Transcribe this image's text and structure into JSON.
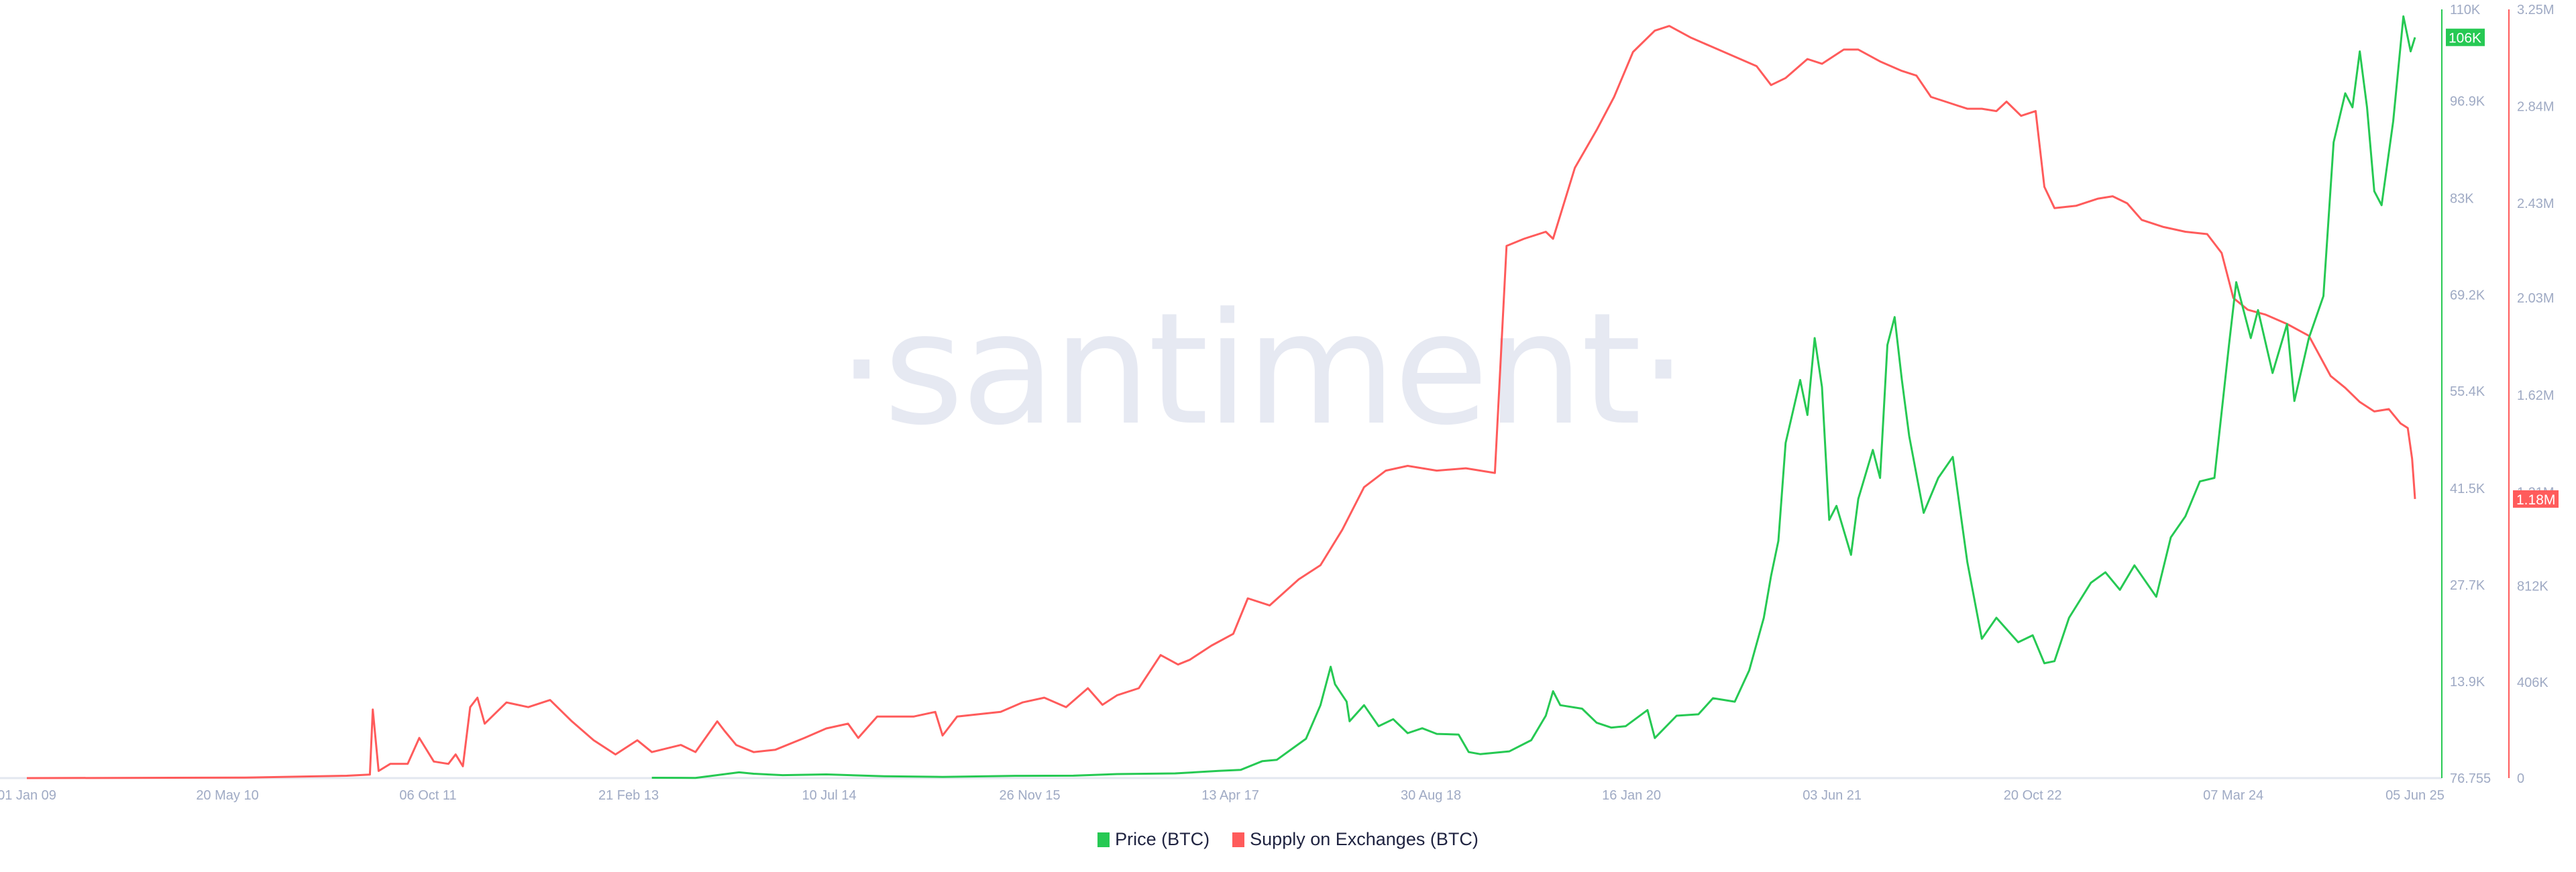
{
  "chart_data": {
    "type": "line",
    "title": "",
    "watermark": "·santiment·",
    "x_tick_labels": [
      "01 Jan 09",
      "20 May 10",
      "06 Oct 11",
      "21 Feb 13",
      "10 Jul 14",
      "26 Nov 15",
      "13 Apr 17",
      "30 Aug 18",
      "16 Jan 20",
      "03 Jun 21",
      "20 Oct 22",
      "07 Mar 24",
      "05 Jun 25"
    ],
    "x_tick_years": [
      2009.0,
      2010.38,
      2011.76,
      2013.14,
      2014.52,
      2015.9,
      2017.28,
      2018.66,
      2020.04,
      2021.42,
      2022.8,
      2024.18,
      2025.43
    ],
    "xlim": [
      2008.98,
      2025.5
    ],
    "legend_position": "bottom-center",
    "grid": false,
    "axes": {
      "left": {
        "series": "Price (BTC)",
        "color": "#26c953",
        "tick_labels": [
          "110K",
          "96.9K",
          "83K",
          "69.2K",
          "55.4K",
          "41.5K",
          "27.7K",
          "13.9K",
          "76.755"
        ],
        "tick_values": [
          110000,
          96900,
          83000,
          69200,
          55400,
          41500,
          27700,
          13900,
          76.755
        ],
        "ylim": [
          76.755,
          110000
        ],
        "current_value_label": "106K",
        "current_value": 106000
      },
      "right": {
        "series": "Supply on Exchanges (BTC)",
        "color": "#ff5b5b",
        "tick_labels": [
          "3.25M",
          "2.84M",
          "2.43M",
          "2.03M",
          "1.62M",
          "1.21M",
          "812K",
          "406K",
          "0"
        ],
        "tick_values": [
          3250000,
          2840000,
          2430000,
          2030000,
          1620000,
          1210000,
          812000,
          406000,
          0
        ],
        "ylim": [
          0,
          3250000
        ],
        "current_value_label": "1.18M",
        "current_value": 1180000
      }
    },
    "series": [
      {
        "name": "Price (BTC)",
        "axis": "left",
        "color": "#26c953",
        "points": [
          [
            2013.3,
            120
          ],
          [
            2013.6,
            110
          ],
          [
            2013.9,
            900
          ],
          [
            2014.0,
            700
          ],
          [
            2014.2,
            500
          ],
          [
            2014.5,
            600
          ],
          [
            2014.9,
            350
          ],
          [
            2015.3,
            250
          ],
          [
            2015.8,
            400
          ],
          [
            2016.2,
            420
          ],
          [
            2016.5,
            650
          ],
          [
            2016.9,
            750
          ],
          [
            2017.2,
            1100
          ],
          [
            2017.35,
            1250
          ],
          [
            2017.5,
            2500
          ],
          [
            2017.6,
            2700
          ],
          [
            2017.7,
            4200
          ],
          [
            2017.8,
            5700
          ],
          [
            2017.9,
            10500
          ],
          [
            2017.97,
            16000
          ],
          [
            2018.0,
            13500
          ],
          [
            2018.08,
            11000
          ],
          [
            2018.1,
            8200
          ],
          [
            2018.2,
            10500
          ],
          [
            2018.3,
            7500
          ],
          [
            2018.4,
            8500
          ],
          [
            2018.5,
            6500
          ],
          [
            2018.6,
            7200
          ],
          [
            2018.7,
            6400
          ],
          [
            2018.85,
            6300
          ],
          [
            2018.92,
            3800
          ],
          [
            2019.0,
            3500
          ],
          [
            2019.2,
            3900
          ],
          [
            2019.35,
            5500
          ],
          [
            2019.45,
            9000
          ],
          [
            2019.5,
            12500
          ],
          [
            2019.55,
            10500
          ],
          [
            2019.7,
            10000
          ],
          [
            2019.8,
            8000
          ],
          [
            2019.9,
            7300
          ],
          [
            2020.0,
            7500
          ],
          [
            2020.15,
            9800
          ],
          [
            2020.2,
            5800
          ],
          [
            2020.35,
            9000
          ],
          [
            2020.5,
            9200
          ],
          [
            2020.6,
            11500
          ],
          [
            2020.75,
            11000
          ],
          [
            2020.85,
            15500
          ],
          [
            2020.95,
            23000
          ],
          [
            2021.0,
            29000
          ],
          [
            2021.05,
            34000
          ],
          [
            2021.1,
            48000
          ],
          [
            2021.2,
            57000
          ],
          [
            2021.25,
            52000
          ],
          [
            2021.3,
            63000
          ],
          [
            2021.35,
            56000
          ],
          [
            2021.4,
            37000
          ],
          [
            2021.45,
            39000
          ],
          [
            2021.55,
            32000
          ],
          [
            2021.6,
            40000
          ],
          [
            2021.7,
            47000
          ],
          [
            2021.75,
            43000
          ],
          [
            2021.8,
            62000
          ],
          [
            2021.85,
            66000
          ],
          [
            2021.9,
            57000
          ],
          [
            2021.95,
            49000
          ],
          [
            2022.05,
            38000
          ],
          [
            2022.15,
            43000
          ],
          [
            2022.25,
            46000
          ],
          [
            2022.35,
            31000
          ],
          [
            2022.45,
            20000
          ],
          [
            2022.55,
            23000
          ],
          [
            2022.7,
            19500
          ],
          [
            2022.8,
            20500
          ],
          [
            2022.88,
            16500
          ],
          [
            2022.95,
            16800
          ],
          [
            2023.05,
            23000
          ],
          [
            2023.2,
            28000
          ],
          [
            2023.3,
            29500
          ],
          [
            2023.4,
            27000
          ],
          [
            2023.5,
            30500
          ],
          [
            2023.65,
            26000
          ],
          [
            2023.75,
            34500
          ],
          [
            2023.85,
            37500
          ],
          [
            2023.95,
            42500
          ],
          [
            2024.05,
            43000
          ],
          [
            2024.15,
            62000
          ],
          [
            2024.2,
            71000
          ],
          [
            2024.3,
            63000
          ],
          [
            2024.35,
            67000
          ],
          [
            2024.45,
            58000
          ],
          [
            2024.55,
            65000
          ],
          [
            2024.6,
            54000
          ],
          [
            2024.7,
            63000
          ],
          [
            2024.8,
            69000
          ],
          [
            2024.87,
            91000
          ],
          [
            2024.95,
            98000
          ],
          [
            2025.0,
            96000
          ],
          [
            2025.05,
            104000
          ],
          [
            2025.1,
            96000
          ],
          [
            2025.15,
            84000
          ],
          [
            2025.2,
            82000
          ],
          [
            2025.28,
            94000
          ],
          [
            2025.35,
            109000
          ],
          [
            2025.4,
            104000
          ],
          [
            2025.43,
            106000
          ]
        ]
      },
      {
        "name": "Supply on Exchanges (BTC)",
        "axis": "right",
        "color": "#ff5b5b",
        "points": [
          [
            2009.0,
            0
          ],
          [
            2010.5,
            2000
          ],
          [
            2011.2,
            10000
          ],
          [
            2011.36,
            15000
          ],
          [
            2011.38,
            290000
          ],
          [
            2011.42,
            30000
          ],
          [
            2011.5,
            60000
          ],
          [
            2011.62,
            60000
          ],
          [
            2011.7,
            170000
          ],
          [
            2011.8,
            70000
          ],
          [
            2011.9,
            60000
          ],
          [
            2011.95,
            100000
          ],
          [
            2012.0,
            50000
          ],
          [
            2012.05,
            300000
          ],
          [
            2012.1,
            340000
          ],
          [
            2012.15,
            230000
          ],
          [
            2012.3,
            320000
          ],
          [
            2012.45,
            300000
          ],
          [
            2012.6,
            330000
          ],
          [
            2012.75,
            240000
          ],
          [
            2012.9,
            160000
          ],
          [
            2013.05,
            100000
          ],
          [
            2013.2,
            160000
          ],
          [
            2013.3,
            110000
          ],
          [
            2013.5,
            140000
          ],
          [
            2013.6,
            110000
          ],
          [
            2013.75,
            240000
          ],
          [
            2013.8,
            200000
          ],
          [
            2013.88,
            140000
          ],
          [
            2014.0,
            110000
          ],
          [
            2014.15,
            120000
          ],
          [
            2014.35,
            170000
          ],
          [
            2014.5,
            210000
          ],
          [
            2014.65,
            230000
          ],
          [
            2014.72,
            170000
          ],
          [
            2014.85,
            260000
          ],
          [
            2014.95,
            260000
          ],
          [
            2015.1,
            260000
          ],
          [
            2015.25,
            280000
          ],
          [
            2015.3,
            180000
          ],
          [
            2015.4,
            260000
          ],
          [
            2015.55,
            270000
          ],
          [
            2015.7,
            280000
          ],
          [
            2015.85,
            320000
          ],
          [
            2016.0,
            340000
          ],
          [
            2016.15,
            300000
          ],
          [
            2016.3,
            380000
          ],
          [
            2016.4,
            310000
          ],
          [
            2016.5,
            350000
          ],
          [
            2016.65,
            380000
          ],
          [
            2016.8,
            520000
          ],
          [
            2016.92,
            480000
          ],
          [
            2017.0,
            500000
          ],
          [
            2017.15,
            560000
          ],
          [
            2017.3,
            610000
          ],
          [
            2017.4,
            760000
          ],
          [
            2017.55,
            730000
          ],
          [
            2017.75,
            840000
          ],
          [
            2017.9,
            900000
          ],
          [
            2018.05,
            1050000
          ],
          [
            2018.2,
            1230000
          ],
          [
            2018.35,
            1300000
          ],
          [
            2018.5,
            1320000
          ],
          [
            2018.7,
            1300000
          ],
          [
            2018.9,
            1310000
          ],
          [
            2019.1,
            1290000
          ],
          [
            2019.18,
            2250000
          ],
          [
            2019.3,
            2280000
          ],
          [
            2019.45,
            2310000
          ],
          [
            2019.5,
            2280000
          ],
          [
            2019.65,
            2580000
          ],
          [
            2019.8,
            2740000
          ],
          [
            2019.92,
            2880000
          ],
          [
            2020.05,
            3070000
          ],
          [
            2020.2,
            3160000
          ],
          [
            2020.3,
            3180000
          ],
          [
            2020.45,
            3130000
          ],
          [
            2020.6,
            3090000
          ],
          [
            2020.75,
            3050000
          ],
          [
            2020.9,
            3010000
          ],
          [
            2021.0,
            2930000
          ],
          [
            2021.1,
            2960000
          ],
          [
            2021.25,
            3040000
          ],
          [
            2021.35,
            3020000
          ],
          [
            2021.5,
            3080000
          ],
          [
            2021.6,
            3080000
          ],
          [
            2021.75,
            3030000
          ],
          [
            2021.9,
            2990000
          ],
          [
            2022.0,
            2970000
          ],
          [
            2022.1,
            2880000
          ],
          [
            2022.2,
            2860000
          ],
          [
            2022.35,
            2830000
          ],
          [
            2022.45,
            2830000
          ],
          [
            2022.55,
            2820000
          ],
          [
            2022.62,
            2860000
          ],
          [
            2022.72,
            2800000
          ],
          [
            2022.82,
            2820000
          ],
          [
            2022.88,
            2500000
          ],
          [
            2022.95,
            2410000
          ],
          [
            2023.1,
            2420000
          ],
          [
            2023.25,
            2450000
          ],
          [
            2023.35,
            2460000
          ],
          [
            2023.45,
            2430000
          ],
          [
            2023.55,
            2360000
          ],
          [
            2023.7,
            2330000
          ],
          [
            2023.85,
            2310000
          ],
          [
            2024.0,
            2300000
          ],
          [
            2024.1,
            2220000
          ],
          [
            2024.18,
            2030000
          ],
          [
            2024.28,
            1980000
          ],
          [
            2024.4,
            1960000
          ],
          [
            2024.55,
            1920000
          ],
          [
            2024.7,
            1870000
          ],
          [
            2024.85,
            1700000
          ],
          [
            2024.95,
            1650000
          ],
          [
            2025.05,
            1590000
          ],
          [
            2025.15,
            1550000
          ],
          [
            2025.25,
            1560000
          ],
          [
            2025.33,
            1500000
          ],
          [
            2025.38,
            1480000
          ],
          [
            2025.41,
            1350000
          ],
          [
            2025.43,
            1180000
          ]
        ]
      }
    ]
  },
  "legend": {
    "items": [
      {
        "label": "Price (BTC)",
        "color": "#26c953"
      },
      {
        "label": "Supply on Exchanges (BTC)",
        "color": "#ff5b5b"
      }
    ]
  }
}
